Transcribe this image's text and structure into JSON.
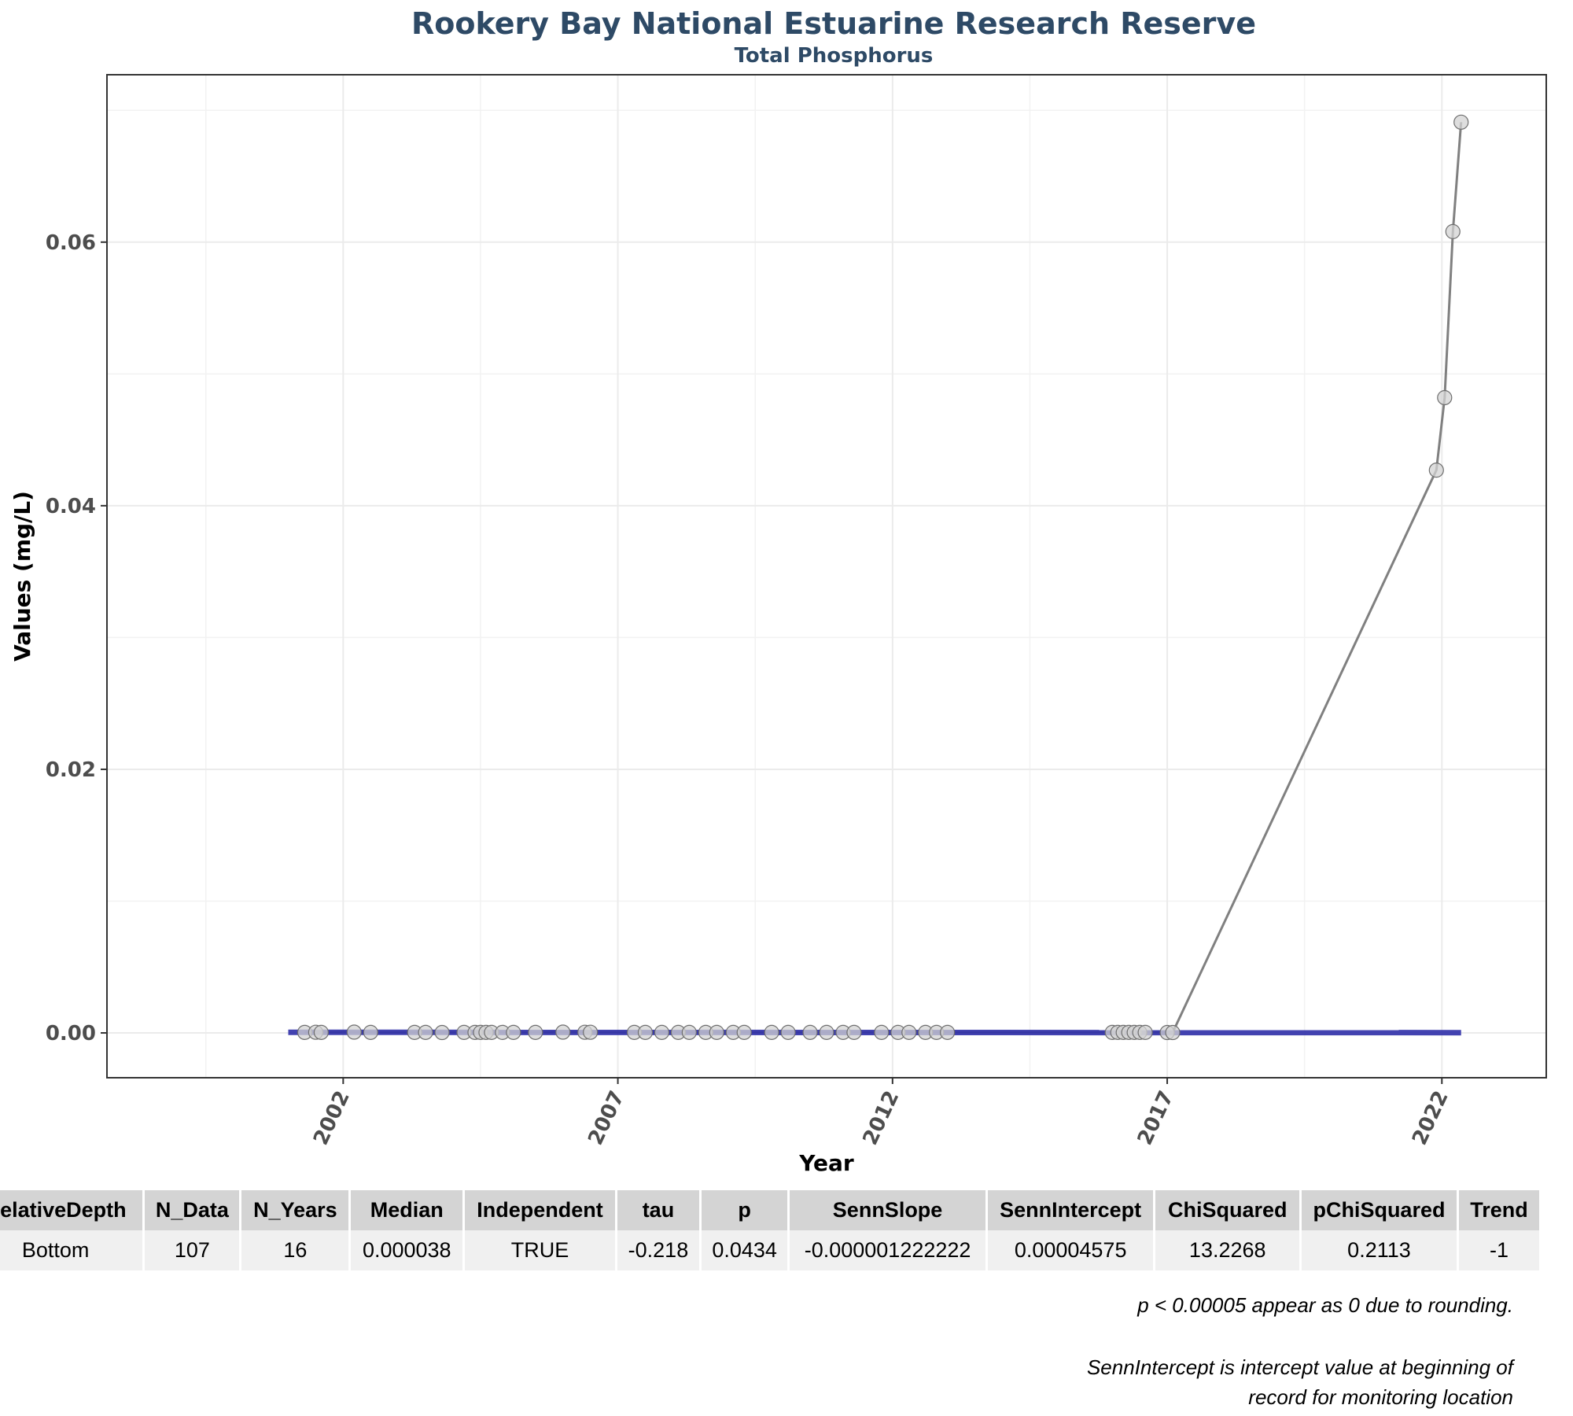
{
  "title": "Rookery Bay National Estuarine Research Reserve",
  "subtitle": "Total Phosphorus",
  "chart_data": {
    "type": "line",
    "xlabel": "Year",
    "ylabel": "Values (mg/L)",
    "xlim": [
      1997.7,
      2023.9
    ],
    "ylim": [
      -0.0034,
      0.0727
    ],
    "x_ticks": [
      2002,
      2007,
      2012,
      2017,
      2022
    ],
    "y_ticks": [
      0.0,
      0.02,
      0.04,
      0.06
    ],
    "y_tick_labels": [
      "0.00",
      "0.02",
      "0.04",
      "0.06"
    ],
    "grid": true,
    "series": [
      {
        "style": "line with circle markers",
        "color": "#808080",
        "x": [
          2001.3,
          2001.5,
          2001.6,
          2002.2,
          2002.5,
          2003.3,
          2003.5,
          2003.8,
          2004.2,
          2004.4,
          2004.5,
          2004.6,
          2004.7,
          2004.9,
          2005.1,
          2005.5,
          2006.0,
          2006.4,
          2006.5,
          2007.3,
          2007.5,
          2007.8,
          2008.1,
          2008.3,
          2008.6,
          2008.8,
          2009.1,
          2009.3,
          2009.8,
          2010.1,
          2010.5,
          2010.8,
          2011.1,
          2011.3,
          2011.8,
          2012.1,
          2012.3,
          2012.6,
          2012.8,
          2013.0,
          2016.0,
          2016.1,
          2016.2,
          2016.3,
          2016.4,
          2016.5,
          2016.6,
          2017.0,
          2017.1,
          2021.9,
          2022.05,
          2022.2,
          2022.35
        ],
        "y": [
          4e-05,
          5e-05,
          4e-05,
          6e-05,
          4e-05,
          4e-05,
          4e-05,
          3e-05,
          4e-05,
          4e-05,
          4e-05,
          4e-05,
          4e-05,
          4e-05,
          4e-05,
          4e-05,
          6e-05,
          5e-05,
          5e-05,
          4e-05,
          4e-05,
          4e-05,
          4e-05,
          4e-05,
          4e-05,
          4e-05,
          4e-05,
          4e-05,
          4e-05,
          4e-05,
          4e-05,
          4e-05,
          4e-05,
          4e-05,
          4e-05,
          4e-05,
          4e-05,
          4e-05,
          4e-05,
          4e-05,
          4e-05,
          4e-05,
          4e-05,
          4e-05,
          4e-05,
          4e-05,
          4e-05,
          3e-05,
          3e-05,
          0.0427,
          0.0482,
          0.0608,
          0.0691
        ]
      },
      {
        "style": "trend line",
        "color": "#2f2fa8",
        "x": [
          2001.0,
          2022.35
        ],
        "y": [
          4.575e-05,
          1.97e-05
        ]
      }
    ]
  },
  "table": {
    "headers": [
      "RelativeDepth",
      "N_Data",
      "N_Years",
      "Median",
      "Independent",
      "tau",
      "p",
      "SennSlope",
      "SennIntercept",
      "ChiSquared",
      "pChiSquared",
      "Trend"
    ],
    "rows": [
      [
        "Bottom",
        "107",
        "16",
        "0.000038",
        "TRUE",
        "-0.218",
        "0.0434",
        "-0.000001222222",
        "0.00004575",
        "13.2268",
        "0.2113",
        "-1"
      ]
    ]
  },
  "notes": {
    "line1": "p < 0.00005 appear as 0 due to rounding.",
    "line2": "SennIntercept is intercept value at beginning of",
    "line3": "record for monitoring location"
  }
}
